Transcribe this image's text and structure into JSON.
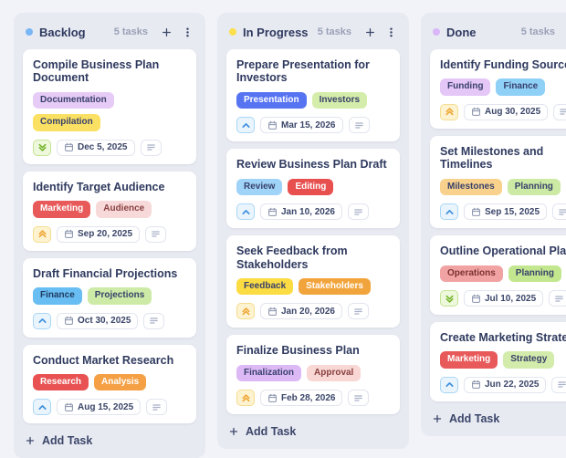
{
  "colors": {
    "page_bg": "#f2f3f9",
    "column_bg": "#e8eaf2",
    "card_bg": "#ffffff",
    "title_text": "#2f3a5f",
    "muted_text": "#99a1b6"
  },
  "priority_styles": {
    "low": {
      "bg": "#edf8dc",
      "border": "#c6e494",
      "color": "#74b32b"
    },
    "high": {
      "bg": "#eaf4fd",
      "border": "#a9d7f6",
      "color": "#3e8fdd"
    },
    "urgent": {
      "bg": "#fdf3d0",
      "border": "#f5dd90",
      "color": "#f0a433"
    }
  },
  "icons": {
    "add": "plus-icon",
    "menu": "kebab-menu-icon",
    "calendar": "calendar-icon",
    "description": "description-lines-icon"
  },
  "board": {
    "columns": [
      {
        "name": "Backlog",
        "dot_color": "#79b6f5",
        "task_count": "5 tasks",
        "add_task_label": "Add Task",
        "cards": [
          {
            "title": "Compile Business Plan Document",
            "tags": [
              {
                "label": "Documentation",
                "bg": "#e7cbf7",
                "fg": "#38406b"
              },
              {
                "label": "Compilation",
                "bg": "#fbe163",
                "fg": "#38406b"
              }
            ],
            "priority": "low",
            "due_date": "Dec 5, 2025"
          },
          {
            "title": "Identify Target Audience",
            "tags": [
              {
                "label": "Marketing",
                "bg": "#e85a5a",
                "fg": "#ffffff"
              },
              {
                "label": "Audience",
                "bg": "#f8d9d9",
                "fg": "#8a4040"
              }
            ],
            "priority": "urgent",
            "due_date": "Sep 20, 2025"
          },
          {
            "title": "Draft Financial Projections",
            "tags": [
              {
                "label": "Finance",
                "bg": "#68bef2",
                "fg": "#223c63"
              },
              {
                "label": "Projections",
                "bg": "#cdeba6",
                "fg": "#38406b"
              }
            ],
            "priority": "high",
            "due_date": "Oct 30, 2025"
          },
          {
            "title": "Conduct Market Research",
            "tags": [
              {
                "label": "Research",
                "bg": "#e85252",
                "fg": "#ffffff"
              },
              {
                "label": "Analysis",
                "bg": "#f5a045",
                "fg": "#ffffff"
              }
            ],
            "priority": "high",
            "due_date": "Aug 15, 2025"
          }
        ]
      },
      {
        "name": "In Progress",
        "dot_color": "#fbdf4c",
        "task_count": "5 tasks",
        "add_task_label": "Add Task",
        "cards": [
          {
            "title": "Prepare Presentation for Investors",
            "tags": [
              {
                "label": "Presentation",
                "bg": "#5673f2",
                "fg": "#ffffff"
              },
              {
                "label": "Investors",
                "bg": "#d5edaa",
                "fg": "#38406b"
              }
            ],
            "priority": "high",
            "due_date": "Mar 15, 2026"
          },
          {
            "title": "Review Business Plan Draft",
            "tags": [
              {
                "label": "Review",
                "bg": "#9fd3f8",
                "fg": "#38406b"
              },
              {
                "label": "Editing",
                "bg": "#e84f4f",
                "fg": "#ffffff"
              }
            ],
            "priority": "high",
            "due_date": "Jan 10, 2026"
          },
          {
            "title": "Seek Feedback from Stakeholders",
            "tags": [
              {
                "label": "Feedback",
                "bg": "#fbdc43",
                "fg": "#38406b"
              },
              {
                "label": "Stakeholders",
                "bg": "#f2a43c",
                "fg": "#ffffff"
              }
            ],
            "priority": "urgent",
            "due_date": "Jan 20, 2026"
          },
          {
            "title": "Finalize Business Plan",
            "tags": [
              {
                "label": "Finalization",
                "bg": "#dcb9f5",
                "fg": "#38406b"
              },
              {
                "label": "Approval",
                "bg": "#f8d7d4",
                "fg": "#8a4040"
              }
            ],
            "priority": "urgent",
            "due_date": "Feb 28, 2026"
          }
        ]
      },
      {
        "name": "Done",
        "dot_color": "#d9b6f8",
        "task_count": "5 tasks",
        "add_task_label": "Add Task",
        "cards": [
          {
            "title": "Identify Funding Sources",
            "tags": [
              {
                "label": "Funding",
                "bg": "#e4c6f7",
                "fg": "#38406b"
              },
              {
                "label": "Finance",
                "bg": "#8fd0f7",
                "fg": "#38406b"
              }
            ],
            "priority": "urgent",
            "due_date": "Aug 30, 2025"
          },
          {
            "title": "Set Milestones and Timelines",
            "tags": [
              {
                "label": "Milestones",
                "bg": "#f8d28c",
                "fg": "#38406b"
              },
              {
                "label": "Planning",
                "bg": "#cdeaa4",
                "fg": "#38406b"
              }
            ],
            "priority": "high",
            "due_date": "Sep 15, 2025"
          },
          {
            "title": "Outline Operational Plan",
            "tags": [
              {
                "label": "Operations",
                "bg": "#f1a3a3",
                "fg": "#7c3030"
              },
              {
                "label": "Planning",
                "bg": "#c3e78f",
                "fg": "#38406b"
              }
            ],
            "priority": "low",
            "due_date": "Jul 10, 2025"
          },
          {
            "title": "Create Marketing Strategy",
            "tags": [
              {
                "label": "Marketing",
                "bg": "#e85a5a",
                "fg": "#ffffff"
              },
              {
                "label": "Strategy",
                "bg": "#d3ecab",
                "fg": "#38406b"
              }
            ],
            "priority": "high",
            "due_date": "Jun 22, 2025"
          }
        ]
      }
    ]
  }
}
